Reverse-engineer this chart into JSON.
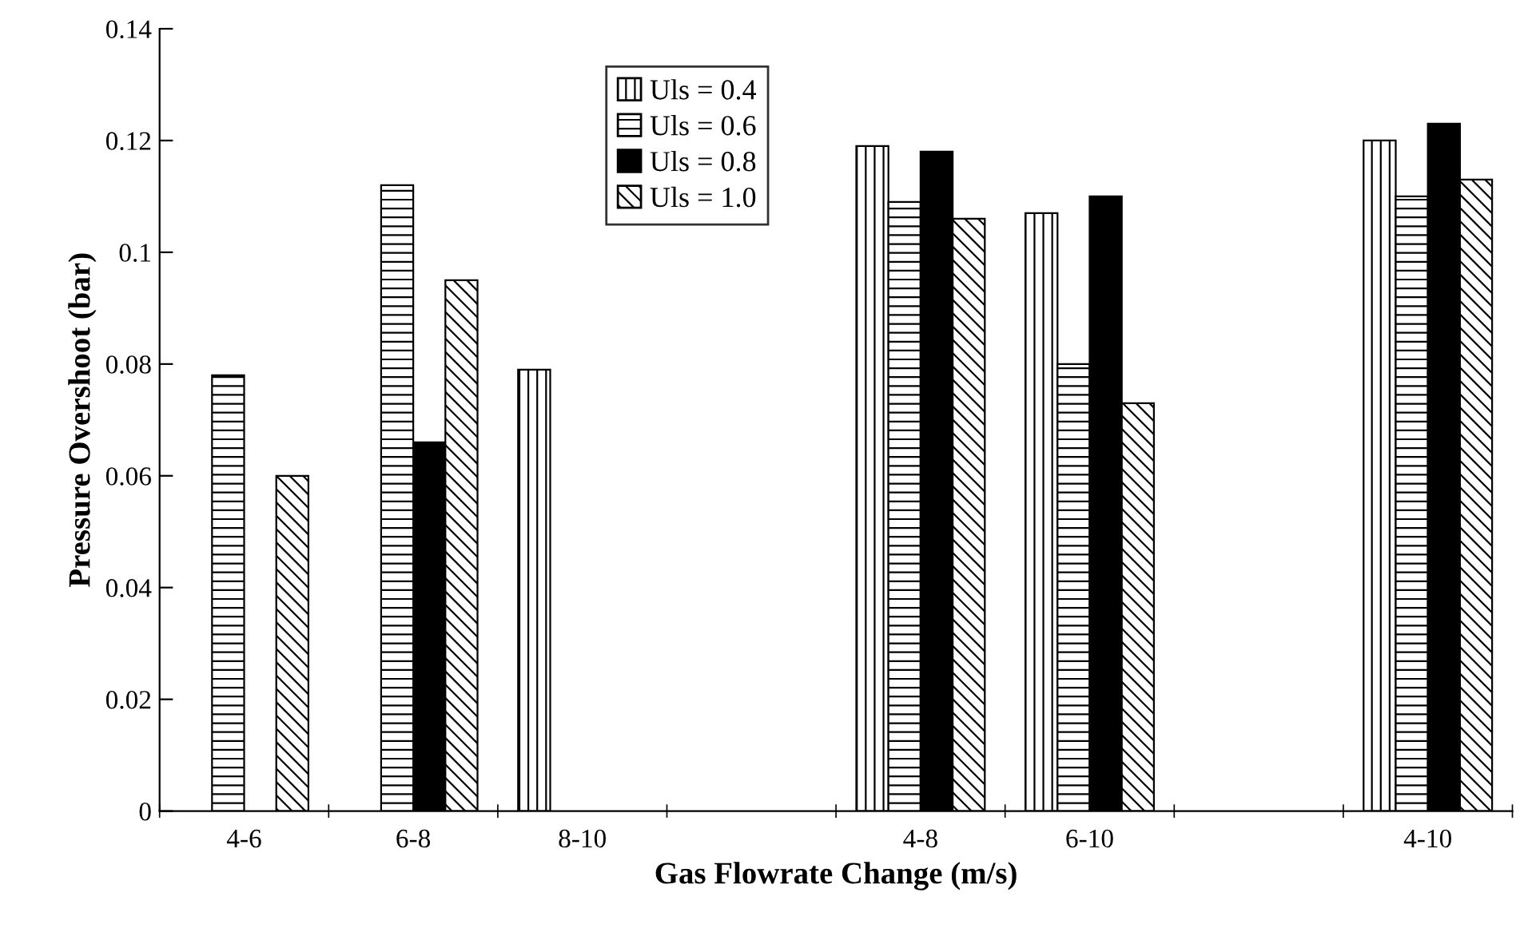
{
  "chart_data": {
    "type": "bar",
    "xlabel": "Gas Flowrate Change (m/s)",
    "ylabel": "Pressure Overshoot (bar)",
    "categories": [
      "4-6",
      "6-8",
      "8-10",
      null,
      "4-8",
      "6-10",
      null,
      "4-10"
    ],
    "series": [
      {
        "name": "Uls = 0.4",
        "color": "#000000",
        "values": [
          null,
          null,
          0.079,
          null,
          0.119,
          0.107,
          null,
          0.12
        ]
      },
      {
        "name": "Uls = 0.6",
        "color": "#000000",
        "values": [
          0.078,
          0.112,
          null,
          null,
          0.109,
          0.08,
          null,
          0.11
        ]
      },
      {
        "name": "Uls = 0.8",
        "color": "#000000",
        "values": [
          null,
          0.066,
          null,
          null,
          0.118,
          0.11,
          null,
          0.123
        ]
      },
      {
        "name": "Uls = 1.0",
        "color": "#000000",
        "values": [
          0.06,
          0.095,
          null,
          null,
          0.106,
          0.073,
          null,
          0.113
        ]
      }
    ],
    "ylim": [
      0,
      0.14
    ],
    "yticks": [
      {
        "value": 0,
        "label": "0"
      },
      0.02,
      0.04,
      0.06,
      0.08,
      {
        "value": 0.1,
        "label": "0.1"
      },
      0.12,
      0.14
    ],
    "grid": false,
    "legend": "top"
  }
}
